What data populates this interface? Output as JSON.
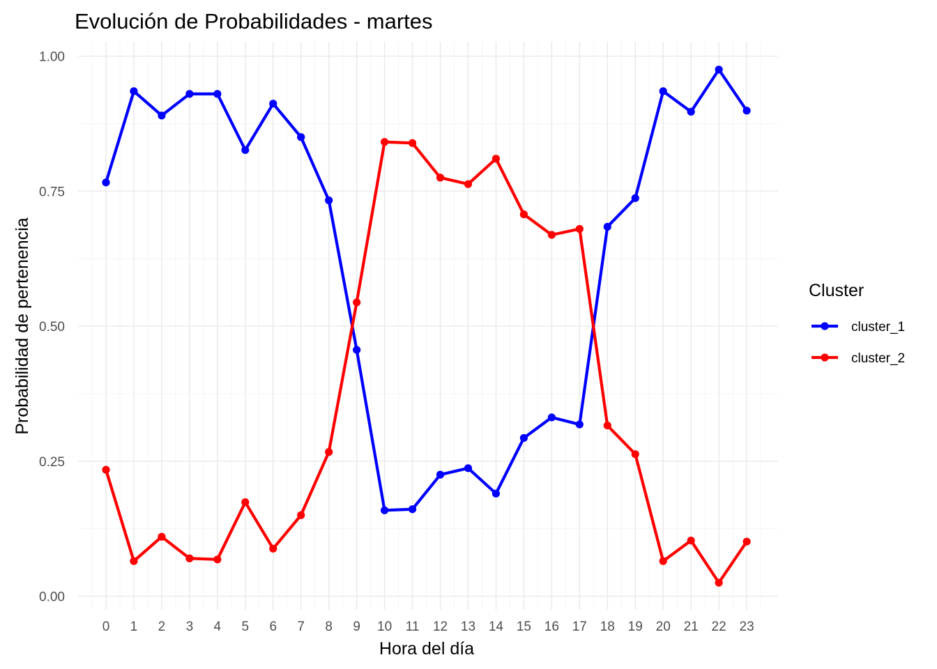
{
  "chart_data": {
    "type": "line",
    "title": "Evolución de Probabilidades - martes",
    "xlabel": "Hora del día",
    "ylabel": "Probabilidad de pertenencia",
    "x": [
      0,
      1,
      2,
      3,
      4,
      5,
      6,
      7,
      8,
      9,
      10,
      11,
      12,
      13,
      14,
      15,
      16,
      17,
      18,
      19,
      20,
      21,
      22,
      23
    ],
    "x_tick_labels": [
      "0",
      "1",
      "2",
      "3",
      "4",
      "5",
      "6",
      "7",
      "8",
      "9",
      "10",
      "11",
      "12",
      "13",
      "14",
      "15",
      "16",
      "17",
      "18",
      "19",
      "20",
      "21",
      "22",
      "23"
    ],
    "y_tick_values": [
      0,
      0.25,
      0.5,
      0.75,
      1.0
    ],
    "y_tick_labels": [
      "0.00",
      "0.25",
      "0.50",
      "0.75",
      "1.00"
    ],
    "ylim": [
      0,
      1
    ],
    "xlim": [
      0,
      23
    ],
    "grid": true,
    "legend": {
      "title": "Cluster",
      "position": "right"
    },
    "series": [
      {
        "name": "cluster_1",
        "color": "#0000ff",
        "values": [
          0.766,
          0.935,
          0.89,
          0.93,
          0.93,
          0.826,
          0.912,
          0.85,
          0.733,
          0.456,
          0.159,
          0.161,
          0.225,
          0.237,
          0.19,
          0.293,
          0.331,
          0.318,
          0.684,
          0.737,
          0.935,
          0.897,
          0.975,
          0.899
        ]
      },
      {
        "name": "cluster_2",
        "color": "#ff0000",
        "values": [
          0.234,
          0.065,
          0.11,
          0.07,
          0.068,
          0.174,
          0.088,
          0.15,
          0.267,
          0.544,
          0.841,
          0.839,
          0.775,
          0.763,
          0.81,
          0.707,
          0.669,
          0.68,
          0.316,
          0.263,
          0.065,
          0.103,
          0.025,
          0.101
        ]
      }
    ]
  }
}
